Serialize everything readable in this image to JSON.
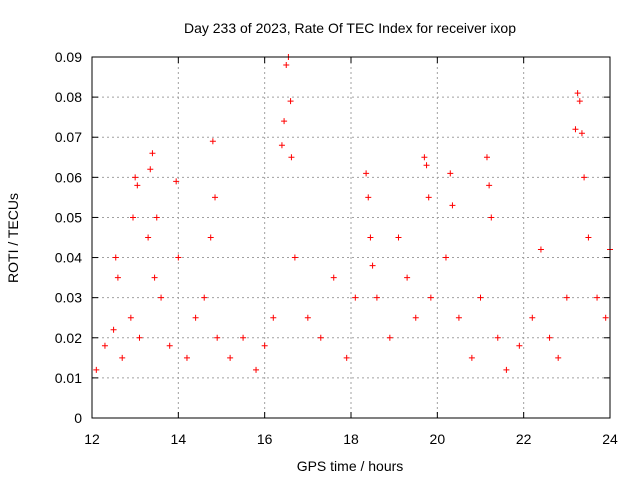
{
  "chart_data": {
    "type": "scatter",
    "title": "Day 233 of 2023, Rate Of TEC Index for receiver ixop",
    "xlabel": "GPS time / hours",
    "ylabel": "ROTI / TECUs",
    "xlim": [
      12,
      24
    ],
    "ylim": [
      0,
      0.09
    ],
    "xticks": [
      12,
      14,
      16,
      18,
      20,
      22,
      24
    ],
    "xtick_labels": [
      "12",
      "14",
      "16",
      "18",
      "20",
      "22",
      "24"
    ],
    "yticks": [
      0,
      0.01,
      0.02,
      0.03,
      0.04,
      0.05,
      0.06,
      0.07,
      0.08,
      0.09
    ],
    "ytick_labels": [
      "0",
      "0.01",
      "0.02",
      "0.03",
      "0.04",
      "0.05",
      "0.06",
      "0.07",
      "0.08",
      "0.09"
    ],
    "grid": true,
    "marker": "+",
    "color": "#ff0000",
    "series": [
      {
        "name": "ROTI",
        "x": [
          12.1,
          12.3,
          12.5,
          12.55,
          12.6,
          12.7,
          12.9,
          12.95,
          13.0,
          13.05,
          13.1,
          13.3,
          13.35,
          13.4,
          13.45,
          13.5,
          13.6,
          13.8,
          13.95,
          14.0,
          14.2,
          14.4,
          14.6,
          14.75,
          14.8,
          14.85,
          14.9,
          15.2,
          15.5,
          15.8,
          16.0,
          16.2,
          16.4,
          16.45,
          16.5,
          16.55,
          16.6,
          16.62,
          16.7,
          17.0,
          17.3,
          17.6,
          17.9,
          18.1,
          18.35,
          18.4,
          18.45,
          18.5,
          18.6,
          18.9,
          19.1,
          19.3,
          19.5,
          19.7,
          19.75,
          19.8,
          19.85,
          20.2,
          20.3,
          20.35,
          20.5,
          20.8,
          21.0,
          21.15,
          21.2,
          21.25,
          21.4,
          21.6,
          21.9,
          22.2,
          22.4,
          22.6,
          22.8,
          23.0,
          23.2,
          23.25,
          23.3,
          23.35,
          23.4,
          23.5,
          23.7,
          23.9,
          24.0
        ],
        "y": [
          0.012,
          0.018,
          0.022,
          0.04,
          0.035,
          0.015,
          0.025,
          0.05,
          0.06,
          0.058,
          0.02,
          0.045,
          0.062,
          0.066,
          0.035,
          0.05,
          0.03,
          0.018,
          0.059,
          0.04,
          0.015,
          0.025,
          0.03,
          0.045,
          0.069,
          0.055,
          0.02,
          0.015,
          0.02,
          0.012,
          0.018,
          0.025,
          0.068,
          0.074,
          0.088,
          0.09,
          0.079,
          0.065,
          0.04,
          0.025,
          0.02,
          0.035,
          0.015,
          0.03,
          0.061,
          0.055,
          0.045,
          0.038,
          0.03,
          0.02,
          0.045,
          0.035,
          0.025,
          0.065,
          0.063,
          0.055,
          0.03,
          0.04,
          0.061,
          0.053,
          0.025,
          0.015,
          0.03,
          0.065,
          0.058,
          0.05,
          0.02,
          0.012,
          0.018,
          0.025,
          0.042,
          0.02,
          0.015,
          0.03,
          0.072,
          0.081,
          0.079,
          0.071,
          0.06,
          0.045,
          0.03,
          0.025,
          0.042
        ]
      }
    ]
  }
}
